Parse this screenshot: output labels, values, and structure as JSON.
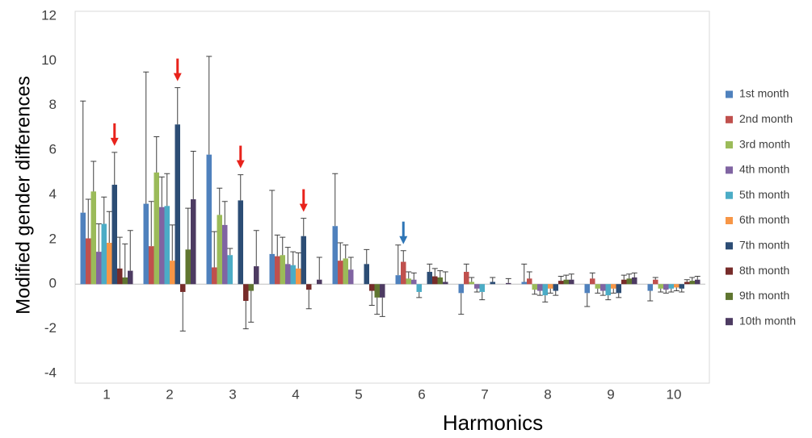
{
  "chart_data": {
    "type": "bar",
    "x_label": "Harmonics",
    "y_label": "Modified gender differences",
    "categories": [
      "1",
      "2",
      "3",
      "4",
      "5",
      "6",
      "7",
      "8",
      "9",
      "10"
    ],
    "ylim": [
      -4,
      12
    ],
    "yticks": [
      -4,
      -2,
      0,
      2,
      4,
      6,
      8,
      10,
      12
    ],
    "grid": false,
    "legend": "right",
    "series": [
      {
        "name": "1st month",
        "color": "#4f81bd",
        "values": [
          3.2,
          3.6,
          5.8,
          1.35,
          2.6,
          0.4,
          -0.4,
          0.1,
          -0.4,
          -0.3
        ],
        "errors": [
          5.0,
          5.9,
          4.4,
          2.85,
          2.35,
          1.35,
          0.95,
          0.8,
          0.6,
          0.45
        ]
      },
      {
        "name": "2nd month",
        "color": "#c0504d",
        "values": [
          2.05,
          1.7,
          0.75,
          1.25,
          1.05,
          1.0,
          0.55,
          0.25,
          0.25,
          0.2
        ],
        "errors": [
          1.75,
          2.0,
          1.6,
          0.95,
          0.8,
          0.5,
          0.35,
          0.3,
          0.25,
          0.1
        ]
      },
      {
        "name": "3rd month",
        "color": "#9bbb59",
        "values": [
          4.15,
          5.0,
          3.1,
          1.3,
          1.15,
          0.25,
          0.1,
          -0.25,
          -0.2,
          -0.2
        ],
        "errors": [
          1.35,
          1.6,
          1.2,
          0.8,
          0.6,
          0.3,
          0.2,
          0.2,
          0.2,
          0.15
        ]
      },
      {
        "name": "4th month",
        "color": "#8064a2",
        "values": [
          1.45,
          3.45,
          2.65,
          0.9,
          0.65,
          0.2,
          -0.2,
          -0.3,
          -0.3,
          -0.25
        ],
        "errors": [
          1.25,
          1.35,
          1.05,
          0.75,
          0.55,
          0.3,
          0.15,
          0.2,
          0.2,
          0.15
        ]
      },
      {
        "name": "5th month",
        "color": "#4bacc6",
        "values": [
          2.7,
          3.5,
          1.3,
          0.85,
          0,
          -0.35,
          -0.35,
          -0.5,
          -0.5,
          -0.2
        ],
        "errors": [
          1.2,
          1.45,
          0.3,
          0.6,
          0,
          0.25,
          0.35,
          0.3,
          0.2,
          0.15
        ]
      },
      {
        "name": "6th month",
        "color": "#f79646",
        "values": [
          1.85,
          1.05,
          0,
          0.7,
          0,
          0,
          0,
          -0.2,
          -0.2,
          -0.15
        ],
        "errors": [
          1.4,
          1.6,
          0,
          0.7,
          0,
          0,
          0,
          0.2,
          0.2,
          0.15
        ]
      },
      {
        "name": "7th month",
        "color": "#2c4d75",
        "values": [
          4.45,
          7.15,
          3.75,
          2.15,
          0.9,
          0.55,
          0.1,
          -0.3,
          -0.4,
          -0.2
        ],
        "errors": [
          1.45,
          1.65,
          1.15,
          0.8,
          0.65,
          0.35,
          0.2,
          0.2,
          0.2,
          0.15
        ]
      },
      {
        "name": "8th month",
        "color": "#772c2a",
        "values": [
          0.7,
          -0.35,
          -0.75,
          -0.25,
          -0.3,
          0.35,
          0,
          0.15,
          0.2,
          0.1
        ],
        "errors": [
          1.4,
          1.75,
          1.25,
          0.85,
          0.65,
          0.35,
          0,
          0.2,
          0.2,
          0.1
        ]
      },
      {
        "name": "9th month",
        "color": "#5f7530",
        "values": [
          0.3,
          1.55,
          -0.3,
          0,
          -0.6,
          0.3,
          0,
          0.2,
          0.25,
          0.15
        ],
        "errors": [
          1.5,
          1.85,
          1.4,
          0,
          0.75,
          0.3,
          0,
          0.2,
          0.2,
          0.15
        ]
      },
      {
        "name": "10th month",
        "color": "#4d3b62",
        "values": [
          0.6,
          3.8,
          0.8,
          0.2,
          -0.6,
          0.1,
          0.05,
          0.2,
          0.3,
          0.2
        ],
        "errors": [
          1.8,
          2.15,
          1.6,
          1.0,
          0.85,
          0.45,
          0.2,
          0.25,
          0.2,
          0.15
        ]
      }
    ]
  }
}
